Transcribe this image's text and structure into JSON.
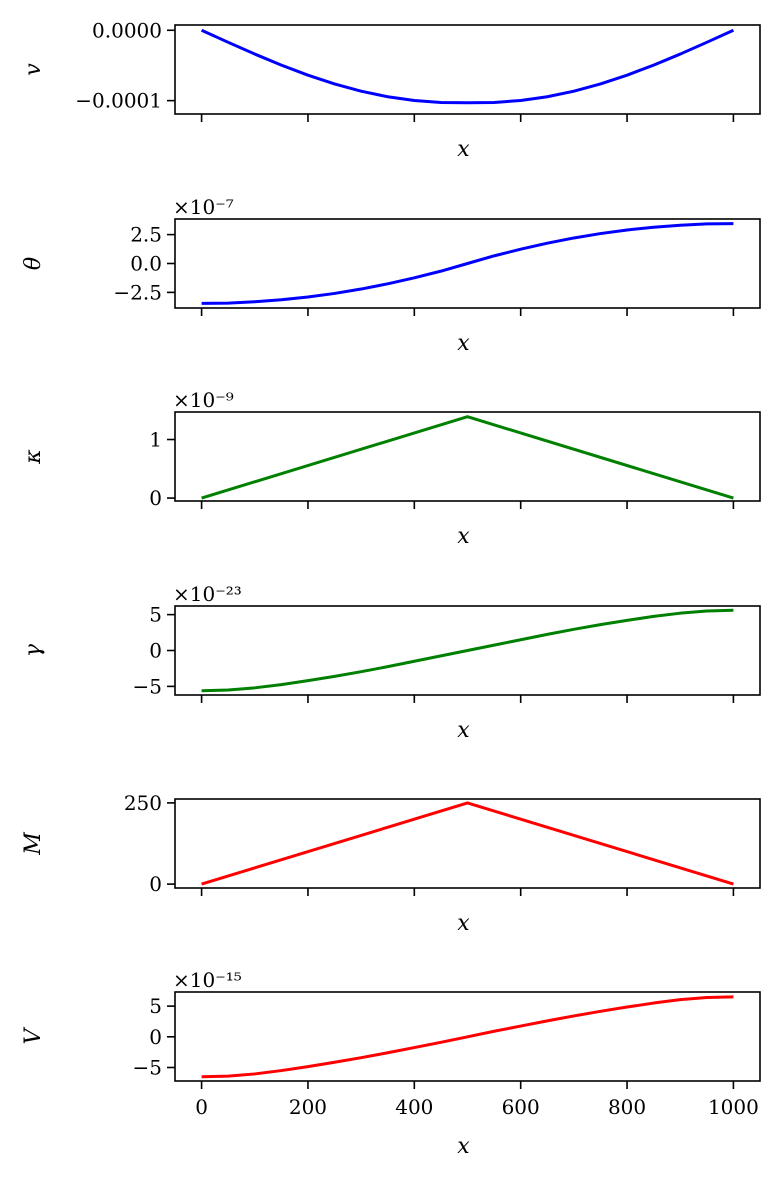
{
  "chart_data": [
    {
      "type": "line",
      "xlabel": "x",
      "ylabel": "v",
      "xlim": [
        -50,
        1050
      ],
      "ylim": [
        -0.000119,
        7.5e-06
      ],
      "xticks": [
        0,
        200,
        400,
        600,
        800,
        1000
      ],
      "show_xtick_labels": false,
      "yticks": [
        0.0,
        -0.0001
      ],
      "ytick_labels": [
        "0.0000",
        "−0.0001"
      ],
      "offset_text": "",
      "color": "#0000ff",
      "series": [
        {
          "x": [
            0,
            50,
            100,
            150,
            200,
            250,
            300,
            350,
            400,
            450,
            500,
            550,
            600,
            650,
            700,
            750,
            800,
            850,
            900,
            950,
            1000
          ],
          "values": [
            0,
            -1.71e-05,
            -3.38e-05,
            -4.95e-05,
            -6.38e-05,
            -7.63e-05,
            -8.66e-05,
            -9.45e-05,
            -9.98e-05,
            -0.0001026,
            -0.000103,
            -0.0001026,
            -9.98e-05,
            -9.45e-05,
            -8.66e-05,
            -7.63e-05,
            -6.38e-05,
            -4.95e-05,
            -3.38e-05,
            -1.71e-05,
            0
          ]
        }
      ]
    },
    {
      "type": "line",
      "xlabel": "x",
      "ylabel": "θ",
      "xlim": [
        -50,
        1050
      ],
      "ylim": [
        -3.85,
        3.85
      ],
      "xticks": [
        0,
        200,
        400,
        600,
        800,
        1000
      ],
      "show_xtick_labels": false,
      "yticks": [
        2.5,
        0,
        -2.5
      ],
      "ytick_labels": [
        "2.5",
        "0.0",
        "−2.5"
      ],
      "offset_text": "×10⁻⁷",
      "color": "#0000ff",
      "series": [
        {
          "x": [
            0,
            50,
            100,
            150,
            200,
            250,
            300,
            350,
            400,
            450,
            500,
            550,
            600,
            650,
            700,
            750,
            800,
            850,
            900,
            950,
            1000
          ],
          "values": [
            -3.45,
            -3.43,
            -3.31,
            -3.14,
            -2.9,
            -2.59,
            -2.21,
            -1.76,
            -1.24,
            -0.66,
            0,
            0.66,
            1.24,
            1.76,
            2.21,
            2.59,
            2.9,
            3.14,
            3.31,
            3.43,
            3.45
          ]
        }
      ]
    },
    {
      "type": "line",
      "xlabel": "x",
      "ylabel": "κ",
      "xlim": [
        -50,
        1050
      ],
      "ylim": [
        -0.05,
        1.47
      ],
      "xticks": [
        0,
        200,
        400,
        600,
        800,
        1000
      ],
      "show_xtick_labels": false,
      "yticks": [
        1,
        0
      ],
      "ytick_labels": [
        "1",
        "0"
      ],
      "offset_text": "×10⁻⁹",
      "color": "#008000",
      "series": [
        {
          "x": [
            0,
            500,
            1000
          ],
          "values": [
            0,
            1.39,
            0
          ]
        }
      ]
    },
    {
      "type": "line",
      "xlabel": "x",
      "ylabel": "γ",
      "xlim": [
        -50,
        1050
      ],
      "ylim": [
        -6.2,
        6.2
      ],
      "xticks": [
        0,
        200,
        400,
        600,
        800,
        1000
      ],
      "show_xtick_labels": false,
      "yticks": [
        5,
        0,
        -5
      ],
      "ytick_labels": [
        "5",
        "0",
        "−5"
      ],
      "offset_text": "×10⁻²³",
      "color": "#008000",
      "series": [
        {
          "x": [
            0,
            50,
            100,
            150,
            200,
            250,
            300,
            350,
            400,
            450,
            500,
            550,
            600,
            650,
            700,
            750,
            800,
            850,
            900,
            950,
            1000
          ],
          "values": [
            -5.6,
            -5.5,
            -5.2,
            -4.75,
            -4.2,
            -3.6,
            -2.95,
            -2.25,
            -1.5,
            -0.75,
            0,
            0.75,
            1.5,
            2.25,
            2.95,
            3.6,
            4.2,
            4.75,
            5.2,
            5.5,
            5.6
          ]
        }
      ]
    },
    {
      "type": "line",
      "xlabel": "x",
      "ylabel": "M",
      "xlim": [
        -50,
        1050
      ],
      "ylim": [
        -12,
        262
      ],
      "xticks": [
        0,
        200,
        400,
        600,
        800,
        1000
      ],
      "show_xtick_labels": false,
      "yticks": [
        250,
        0
      ],
      "ytick_labels": [
        "250",
        "0"
      ],
      "offset_text": "",
      "color": "#ff0000",
      "series": [
        {
          "x": [
            0,
            500,
            1000
          ],
          "values": [
            0,
            250,
            0
          ]
        }
      ]
    },
    {
      "type": "line",
      "xlabel": "x",
      "ylabel": "V",
      "xlim": [
        -50,
        1050
      ],
      "ylim": [
        -7.2,
        7.3
      ],
      "xticks": [
        0,
        200,
        400,
        600,
        800,
        1000
      ],
      "xtick_labels": [
        "0",
        "200",
        "400",
        "600",
        "800",
        "1000"
      ],
      "show_xtick_labels": true,
      "yticks": [
        5,
        0,
        -5
      ],
      "ytick_labels": [
        "5",
        "0",
        "−5"
      ],
      "offset_text": "×10⁻¹⁵",
      "color": "#ff0000",
      "series": [
        {
          "x": [
            0,
            50,
            100,
            150,
            200,
            250,
            300,
            350,
            400,
            450,
            500,
            550,
            600,
            650,
            700,
            750,
            800,
            850,
            900,
            950,
            1000
          ],
          "values": [
            -6.5,
            -6.4,
            -6.05,
            -5.5,
            -4.85,
            -4.15,
            -3.4,
            -2.6,
            -1.75,
            -0.9,
            0,
            0.9,
            1.75,
            2.6,
            3.4,
            4.15,
            4.85,
            5.5,
            6.05,
            6.4,
            6.5
          ]
        }
      ]
    }
  ]
}
